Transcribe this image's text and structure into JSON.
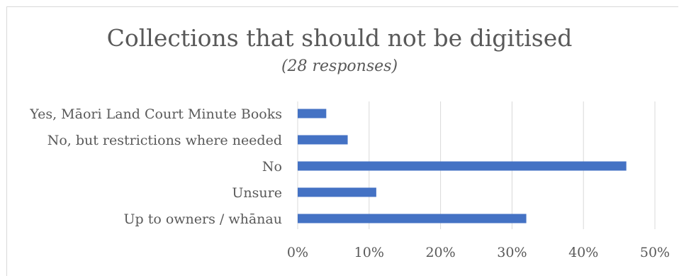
{
  "chart_data": {
    "type": "bar",
    "orientation": "horizontal",
    "title": "Collections that should not be digitised",
    "subtitle": "(28 responses)",
    "categories": [
      "Yes, Māori Land Court Minute Books",
      "No, but restrictions where needed",
      "No",
      "Unsure",
      "Up to owners / whānau"
    ],
    "values": [
      4,
      7,
      46,
      11,
      32
    ],
    "xlim": [
      0,
      50
    ],
    "x_ticks": [
      0,
      10,
      20,
      30,
      40,
      50
    ],
    "x_tick_labels": [
      "0%",
      "10%",
      "20%",
      "30%",
      "40%",
      "50%"
    ],
    "grid": "vertical",
    "legend": "none",
    "bar_color": "#4472c4"
  }
}
